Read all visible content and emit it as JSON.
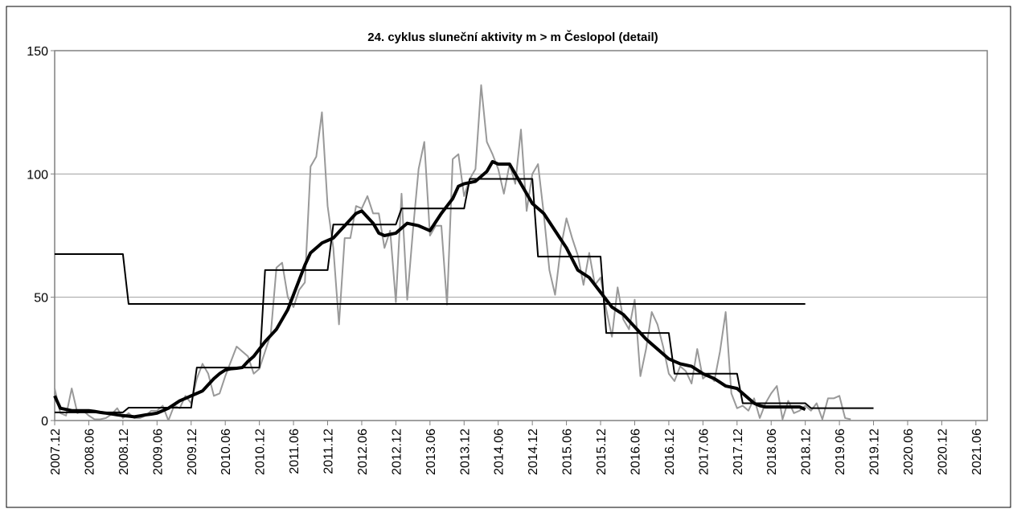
{
  "chart_data": {
    "type": "line",
    "title": "24. cyklus sluneční aktivity m > m Česlopol (detail)",
    "categories": [
      "2007.12",
      null,
      null,
      null,
      null,
      null,
      "2008.06",
      null,
      null,
      null,
      null,
      null,
      "2008.12",
      null,
      null,
      null,
      null,
      null,
      "2009.06",
      null,
      null,
      null,
      null,
      null,
      "2009.12",
      null,
      null,
      null,
      null,
      null,
      "2010.06",
      null,
      null,
      null,
      null,
      null,
      "2010.12",
      null,
      null,
      null,
      null,
      null,
      "2011.06",
      null,
      null,
      null,
      null,
      null,
      "2011.12",
      null,
      null,
      null,
      null,
      null,
      "2012.06",
      null,
      null,
      null,
      null,
      null,
      "2012.12",
      null,
      null,
      null,
      null,
      null,
      "2013.06",
      null,
      null,
      null,
      null,
      null,
      "2013.12",
      null,
      null,
      null,
      null,
      null,
      "2014.06",
      null,
      null,
      null,
      null,
      null,
      "2014.12",
      null,
      null,
      null,
      null,
      null,
      "2015.06",
      null,
      null,
      null,
      null,
      null,
      "2015.12",
      null,
      null,
      null,
      null,
      null,
      "2016.06",
      null,
      null,
      null,
      null,
      null,
      "2016.12",
      null,
      null,
      null,
      null,
      null,
      "2017.06",
      null,
      null,
      null,
      null,
      null,
      "2017.12",
      null,
      null,
      null,
      null,
      null,
      "2018.06",
      null,
      null,
      null,
      null,
      null,
      "2018.12",
      null,
      null,
      null,
      null,
      null,
      "2019.06",
      null,
      null,
      null,
      null,
      null,
      "2019.12",
      null,
      null,
      null,
      null,
      null,
      "2020.06",
      null,
      null,
      null,
      null,
      null,
      "2020.12",
      null,
      null,
      null,
      null,
      null,
      "2021.06"
    ],
    "series": [
      {
        "color": "#999999",
        "width": 2,
        "values": [
          13,
          3,
          2,
          13,
          3,
          4,
          2,
          0.5,
          0.5,
          1,
          2.5,
          5,
          1,
          3,
          1,
          1,
          2,
          4,
          4,
          6,
          0,
          6,
          5,
          10,
          7,
          17,
          23,
          19,
          10,
          11,
          18,
          24,
          30,
          28,
          26,
          19,
          21,
          28,
          35,
          62,
          64,
          50,
          46,
          53,
          56,
          103,
          107,
          125,
          87,
          70,
          39,
          74,
          74,
          87,
          86,
          91,
          84,
          84,
          70,
          77,
          48,
          92,
          49,
          77,
          102,
          113,
          75,
          79,
          79,
          47,
          106,
          108,
          91,
          98,
          102,
          136,
          113,
          108,
          102,
          92,
          104,
          96,
          118,
          85,
          100,
          104,
          84,
          61,
          51,
          70,
          82,
          74,
          67,
          55,
          68,
          55,
          58,
          45,
          34,
          54,
          41,
          37,
          49,
          18,
          29,
          44,
          39,
          30,
          19,
          16,
          22,
          20,
          15,
          29,
          17,
          19,
          16,
          28,
          44,
          11,
          5,
          6,
          4,
          9,
          1,
          7,
          11,
          14,
          0.5,
          8,
          3,
          4,
          6,
          4,
          7,
          0.5,
          9,
          9,
          10,
          1,
          0.5,
          null,
          null,
          null,
          null,
          null,
          null,
          null,
          null,
          null,
          null,
          null,
          null,
          null,
          null,
          null,
          null,
          null,
          null,
          null,
          null,
          null,
          null
        ]
      },
      {
        "color": "#000000",
        "width": 2,
        "values": [
          67.5,
          67.5,
          67.5,
          67.5,
          67.5,
          67.5,
          67.5,
          67.5,
          67.5,
          67.5,
          67.5,
          67.5,
          67.5,
          47.3,
          47.3,
          47.3,
          47.3,
          47.3,
          47.3,
          47.3,
          47.3,
          47.3,
          47.3,
          47.3,
          47.3,
          47.3,
          47.3,
          47.3,
          47.3,
          47.3,
          47.3,
          47.3,
          47.3,
          47.3,
          47.3,
          47.3,
          47.3,
          47.3,
          47.3,
          47.3,
          47.3,
          47.3,
          47.3,
          47.3,
          47.3,
          47.3,
          47.3,
          47.3,
          47.3,
          47.3,
          47.3,
          47.3,
          47.3,
          47.3,
          47.3,
          47.3,
          47.3,
          47.3,
          47.3,
          47.3,
          47.3,
          47.3,
          47.3,
          47.3,
          47.3,
          47.3,
          47.3,
          47.3,
          47.3,
          47.3,
          47.3,
          47.3,
          47.3,
          47.3,
          47.3,
          47.3,
          47.3,
          47.3,
          47.3,
          47.3,
          47.3,
          47.3,
          47.3,
          47.3,
          47.3,
          47.3,
          47.3,
          47.3,
          47.3,
          47.3,
          47.3,
          47.3,
          47.3,
          47.3,
          47.3,
          47.3,
          47.3,
          47.3,
          47.3,
          47.3,
          47.3,
          47.3,
          47.3,
          47.3,
          47.3,
          47.3,
          47.3,
          47.3,
          47.3,
          47.3,
          47.3,
          47.3,
          47.3,
          47.3,
          47.3,
          47.3,
          47.3,
          47.3,
          47.3,
          47.3,
          47.3,
          47.3,
          47.3,
          47.3,
          47.3,
          47.3,
          47.3,
          47.3,
          47.3,
          47.3,
          47.3,
          47.3,
          47.3,
          null,
          null,
          null,
          null,
          null,
          null,
          null,
          null,
          null,
          null,
          null,
          null,
          null,
          null,
          null,
          null,
          null,
          null,
          null,
          null,
          null,
          null,
          null,
          null,
          null,
          null,
          null,
          null,
          null,
          null
        ]
      },
      {
        "color": "#000000",
        "width": 2,
        "values": [
          3.3,
          3.3,
          3.3,
          3.3,
          3.3,
          3.3,
          3.3,
          3.3,
          3.3,
          3.3,
          3.3,
          3.3,
          3.3,
          5.2,
          5.2,
          5.2,
          5.2,
          5.2,
          5.2,
          5.2,
          5.2,
          5.2,
          5.2,
          5.2,
          5.2,
          21.5,
          21.5,
          21.5,
          21.5,
          21.5,
          21.5,
          21.5,
          21.5,
          21.5,
          21.5,
          21.5,
          21.5,
          61,
          61,
          61,
          61,
          61,
          61,
          61,
          61,
          61,
          61,
          61,
          61,
          79.5,
          79.5,
          79.5,
          79.5,
          79.5,
          79.5,
          79.5,
          79.5,
          79.5,
          79.5,
          79.5,
          79.5,
          86,
          86,
          86,
          86,
          86,
          86,
          86,
          86,
          86,
          86,
          86,
          86,
          98,
          98,
          98,
          98,
          98,
          98,
          98,
          98,
          98,
          98,
          98,
          98,
          66.5,
          66.5,
          66.5,
          66.5,
          66.5,
          66.5,
          66.5,
          66.5,
          66.5,
          66.5,
          66.5,
          66.5,
          35.5,
          35.5,
          35.5,
          35.5,
          35.5,
          35.5,
          35.5,
          35.5,
          35.5,
          35.5,
          35.5,
          35.5,
          19,
          19,
          19,
          19,
          19,
          19,
          19,
          19,
          19,
          19,
          19,
          19,
          7,
          7,
          7,
          7,
          7,
          7,
          7,
          7,
          7,
          7,
          7,
          7,
          5,
          5,
          5,
          5,
          5,
          5,
          5,
          5,
          5,
          5,
          5,
          5,
          null,
          null,
          null,
          null,
          null,
          null,
          null,
          null,
          null,
          null,
          null,
          null,
          null,
          null,
          null,
          null,
          null,
          null
        ]
      },
      {
        "color": "#000000",
        "width": 4,
        "values": [
          10,
          5,
          4.5,
          4,
          4,
          4,
          4,
          3.7,
          3.3,
          3,
          2.7,
          2.3,
          2,
          1.8,
          1.5,
          1.9,
          2.3,
          2.6,
          3,
          4,
          5,
          6.5,
          8,
          9,
          10,
          11,
          12,
          14.5,
          17,
          19,
          20.5,
          21,
          21.2,
          21.5,
          24,
          26,
          29,
          32,
          34.5,
          37,
          41,
          45,
          51,
          57,
          63,
          68,
          70,
          72,
          73,
          74,
          76.5,
          79,
          81.5,
          84,
          85,
          82.5,
          80,
          76,
          75,
          75.5,
          76,
          78,
          80,
          79.5,
          79,
          78,
          77,
          80.5,
          84,
          87,
          90,
          95,
          96,
          96.5,
          97,
          99,
          101,
          105,
          104,
          104,
          104,
          100,
          96,
          92,
          88,
          86,
          84,
          80.5,
          77,
          73.5,
          70,
          65.5,
          61,
          59.5,
          58,
          55,
          52,
          49,
          46,
          44.5,
          43,
          40.5,
          38,
          35.5,
          33,
          31,
          29,
          27,
          25,
          24,
          23,
          22.5,
          22,
          20.5,
          19,
          18,
          17,
          15.5,
          14,
          13.5,
          13,
          11,
          9,
          7,
          6,
          5.5,
          5.5,
          5.5,
          5.5,
          5.5,
          5.5,
          5.5,
          4.5,
          null,
          null,
          null,
          null,
          null,
          null,
          null,
          null,
          null,
          null,
          null,
          null,
          null,
          null,
          null,
          null,
          null,
          null,
          null,
          null,
          null,
          null,
          null,
          null,
          null,
          null,
          null,
          null,
          null,
          null
        ]
      }
    ],
    "ylim": [
      0,
      150
    ],
    "yticks": [
      0,
      50,
      100,
      150
    ],
    "grid": true
  }
}
